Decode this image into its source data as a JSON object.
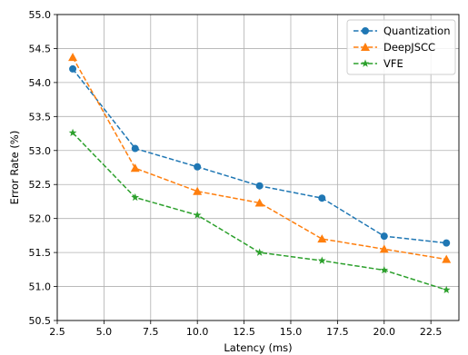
{
  "chart_data": {
    "type": "line",
    "title": "",
    "xlabel": "Latency (ms)",
    "ylabel": "Error Rate (%)",
    "xlim": [
      2.5,
      24.0
    ],
    "ylim": [
      50.5,
      55.0
    ],
    "xticks": [
      2.5,
      5.0,
      7.5,
      10.0,
      12.5,
      15.0,
      17.5,
      20.0,
      22.5
    ],
    "xtick_labels": [
      "2.5",
      "5.0",
      "7.5",
      "10.0",
      "12.5",
      "15.0",
      "17.5",
      "20.0",
      "22.5"
    ],
    "yticks": [
      50.5,
      51.0,
      51.5,
      52.0,
      52.5,
      53.0,
      53.5,
      54.0,
      54.5,
      55.0
    ],
    "ytick_labels": [
      "50.5",
      "51.0",
      "51.5",
      "52.0",
      "52.5",
      "53.0",
      "53.5",
      "54.0",
      "54.5",
      "55.0"
    ],
    "grid": true,
    "legend_position": "top-right",
    "x": [
      3.33,
      6.67,
      10.0,
      13.33,
      16.67,
      20.0,
      23.33
    ],
    "series": [
      {
        "name": "Quantization",
        "color": "#1f77b4",
        "marker": "circle",
        "values": [
          54.2,
          53.03,
          52.76,
          52.48,
          52.3,
          51.74,
          51.64
        ]
      },
      {
        "name": "DeepJSCC",
        "color": "#ff7f0e",
        "marker": "triangle",
        "values": [
          54.37,
          52.74,
          52.4,
          52.23,
          51.7,
          51.55,
          51.4
        ]
      },
      {
        "name": "VFE",
        "color": "#2ca02c",
        "marker": "star",
        "values": [
          53.26,
          52.31,
          52.05,
          51.5,
          51.38,
          51.24,
          50.95
        ]
      }
    ]
  }
}
